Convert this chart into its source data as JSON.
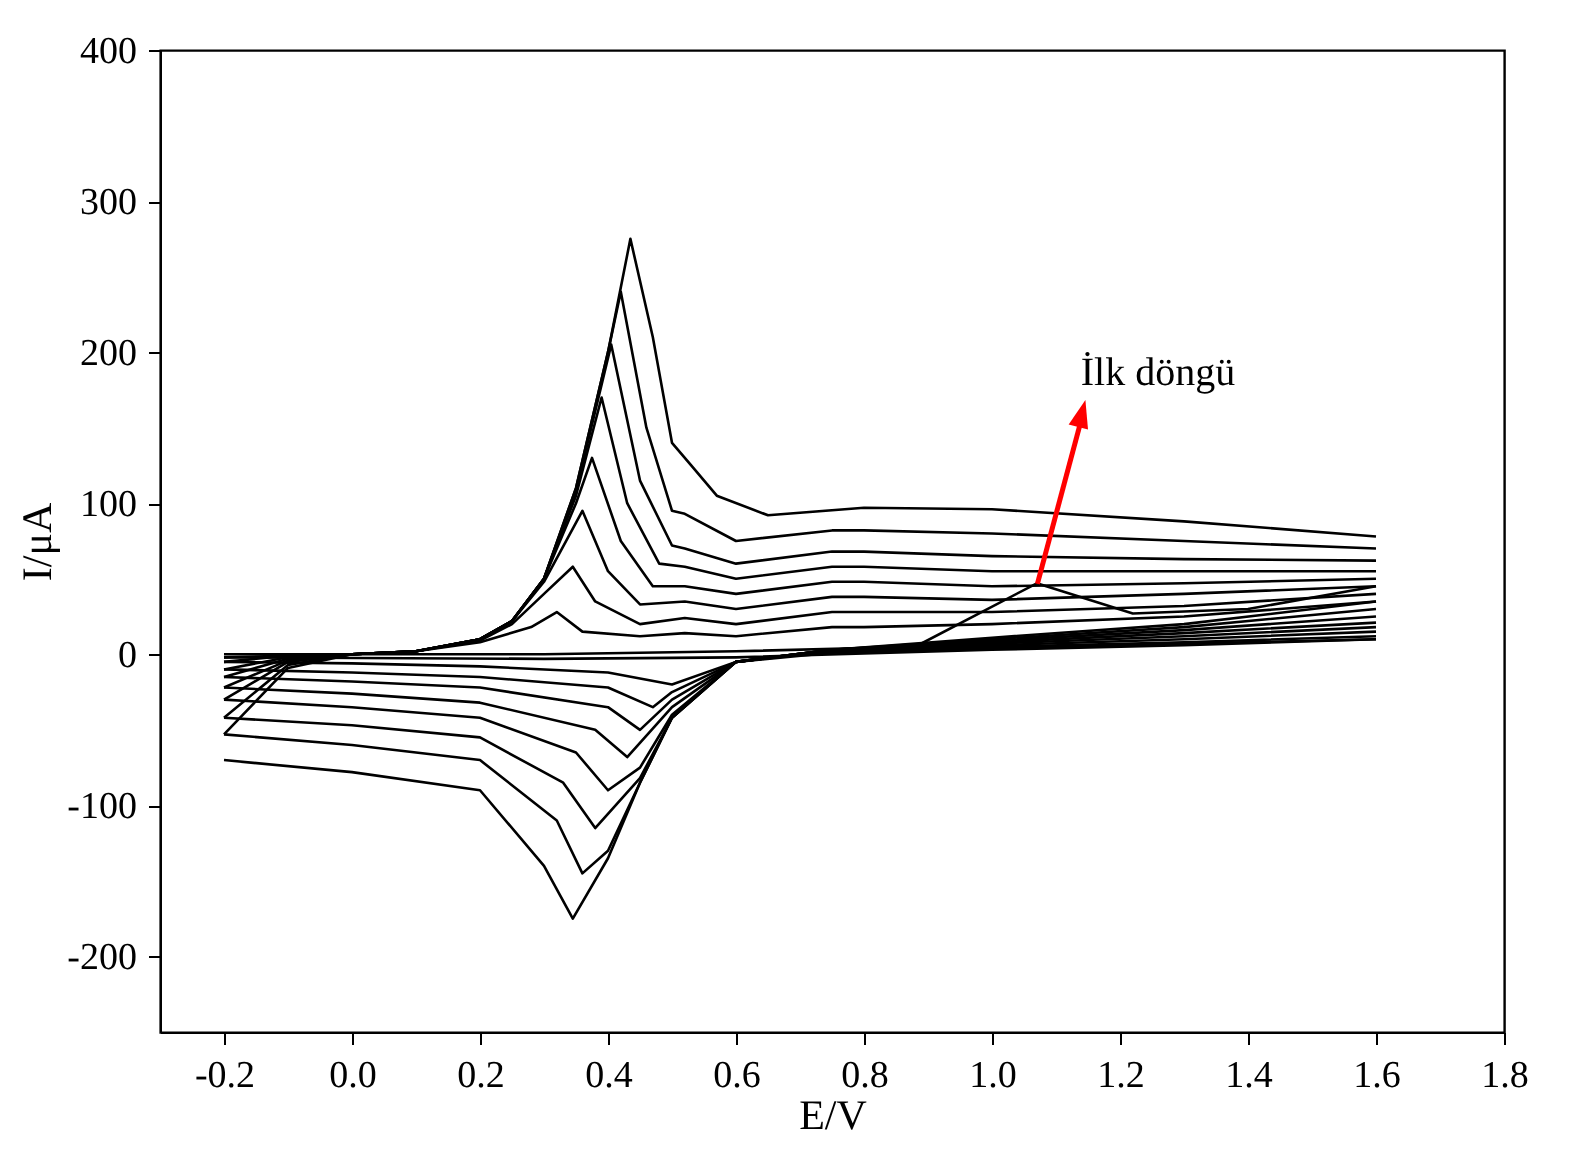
{
  "chart_data": {
    "type": "line",
    "xlabel": "E/V",
    "ylabel": "I/μA",
    "xlim": [
      -0.3,
      1.8
    ],
    "ylim": [
      -250,
      400
    ],
    "xticks": [
      -0.2,
      {
        "value": 0,
        "label": "0.0"
      },
      0.2,
      0.4,
      0.6,
      0.8,
      {
        "value": 1,
        "label": "1.0"
      },
      1.2,
      1.4,
      1.6,
      1.8
    ],
    "yticks": [
      -200,
      -100,
      0,
      100,
      200,
      300,
      400
    ],
    "grid": false,
    "legend": false,
    "marker": "none",
    "line_style": "solid",
    "annotations": [
      {
        "text": "İlk döngü",
        "x": 1.07,
        "y": 47
      }
    ],
    "series": [
      {
        "color": "#000000",
        "x": [
          -0.2,
          0.3,
          0.6,
          0.88,
          1.07,
          1.22,
          1.4,
          1.6
        ],
        "values": [
          0,
          0,
          2,
          5,
          47,
          27,
          30,
          45
        ]
      },
      {
        "color": "#000000",
        "x": [
          1.6,
          1.3,
          1.0,
          0.6,
          0.3,
          -0.2
        ],
        "values": [
          10,
          6,
          3,
          -2,
          -3,
          -2
        ]
      },
      {
        "color": "#000000",
        "x": [
          -0.2,
          -0.1,
          0,
          0.1,
          0.2,
          0.28,
          0.32,
          0.36,
          0.45,
          0.52,
          0.6,
          0.75,
          0.8,
          1.0,
          1.3,
          1.6
        ],
        "values": [
          -5,
          -1,
          0,
          2,
          8,
          18,
          28,
          15,
          12,
          14,
          12,
          18,
          18,
          20,
          25,
          35
        ]
      },
      {
        "color": "#000000",
        "x": [
          1.6,
          1.3,
          1.0,
          0.75,
          0.6,
          0.5,
          0.4,
          0.2,
          0,
          -0.2
        ],
        "values": [
          10,
          7,
          4,
          1,
          -5,
          -20,
          -12,
          -8,
          -6,
          -5
        ]
      },
      {
        "color": "#000000",
        "x": [
          -0.2,
          -0.1,
          0,
          0.1,
          0.2,
          0.25,
          0.3,
          0.345,
          0.38,
          0.45,
          0.52,
          0.6,
          0.75,
          0.8,
          1.0,
          1.3,
          1.6
        ],
        "values": [
          -10,
          -2,
          0,
          2,
          9,
          20,
          40,
          58,
          35,
          20,
          24,
          20,
          28,
          28,
          28,
          32,
          40
        ]
      },
      {
        "color": "#000000",
        "x": [
          1.6,
          1.3,
          1.0,
          0.75,
          0.6,
          0.5,
          0.47,
          0.4,
          0.2,
          0,
          -0.2
        ],
        "values": [
          12,
          8,
          5,
          2,
          -5,
          -25,
          -35,
          -22,
          -15,
          -12,
          -10
        ]
      },
      {
        "color": "#000000",
        "x": [
          -0.2,
          -0.1,
          0,
          0.1,
          0.2,
          0.25,
          0.3,
          0.36,
          0.4,
          0.45,
          0.52,
          0.6,
          0.75,
          0.8,
          1.0,
          1.3,
          1.6
        ],
        "values": [
          -15,
          -3,
          0,
          2,
          10,
          22,
          48,
          95,
          55,
          33,
          35,
          30,
          38,
          38,
          36,
          40,
          45
        ]
      },
      {
        "color": "#000000",
        "x": [
          1.6,
          1.3,
          1.0,
          0.75,
          0.6,
          0.5,
          0.45,
          0.4,
          0.2,
          0,
          -0.2
        ],
        "values": [
          15,
          10,
          6,
          3,
          -5,
          -30,
          -50,
          -35,
          -22,
          -18,
          -15
        ]
      },
      {
        "color": "#000000",
        "x": [
          -0.2,
          -0.1,
          0,
          0.1,
          0.2,
          0.25,
          0.3,
          0.35,
          0.375,
          0.42,
          0.47,
          0.52,
          0.6,
          0.75,
          0.8,
          1.0,
          1.3,
          1.6
        ],
        "values": [
          -22,
          -4,
          0,
          2,
          10,
          22,
          50,
          100,
          130,
          75,
          45,
          45,
          40,
          48,
          48,
          45,
          47,
          50
        ]
      },
      {
        "color": "#000000",
        "x": [
          1.6,
          1.3,
          1.0,
          0.75,
          0.6,
          0.5,
          0.43,
          0.38,
          0.2,
          0,
          -0.2
        ],
        "values": [
          18,
          12,
          7,
          3,
          -5,
          -35,
          -68,
          -50,
          -32,
          -26,
          -22
        ]
      },
      {
        "color": "#000000",
        "x": [
          -0.2,
          -0.1,
          0,
          0.1,
          0.2,
          0.25,
          0.3,
          0.35,
          0.39,
          0.43,
          0.48,
          0.52,
          0.6,
          0.75,
          0.8,
          1.0,
          1.3,
          1.6
        ],
        "values": [
          -30,
          -5,
          0,
          2,
          10,
          22,
          50,
          105,
          170,
          100,
          60,
          58,
          50,
          58,
          58,
          55,
          55,
          55
        ]
      },
      {
        "color": "#000000",
        "x": [
          1.6,
          1.3,
          1.0,
          0.75,
          0.6,
          0.5,
          0.45,
          0.4,
          0.35,
          0.2,
          0,
          -0.2
        ],
        "values": [
          21,
          14,
          8,
          3,
          -5,
          -40,
          -75,
          -90,
          -65,
          -42,
          -35,
          -30
        ]
      },
      {
        "color": "#000000",
        "x": [
          -0.2,
          -0.1,
          0,
          0.1,
          0.2,
          0.25,
          0.3,
          0.35,
          0.405,
          0.45,
          0.5,
          0.52,
          0.6,
          0.75,
          0.8,
          1.0,
          1.3,
          1.6
        ],
        "values": [
          -42,
          -7,
          0,
          2,
          10,
          22,
          50,
          108,
          205,
          115,
          72,
          70,
          60,
          68,
          68,
          65,
          63,
          62
        ]
      },
      {
        "color": "#000000",
        "x": [
          1.6,
          1.3,
          1.0,
          0.75,
          0.6,
          0.5,
          0.45,
          0.38,
          0.33,
          0.2,
          0,
          -0.2
        ],
        "values": [
          25,
          16,
          9,
          3,
          -5,
          -42,
          -82,
          -115,
          -85,
          -55,
          -47,
          -42
        ]
      },
      {
        "color": "#000000",
        "x": [
          -0.2,
          -0.1,
          0,
          0.1,
          0.2,
          0.25,
          0.3,
          0.35,
          0.4,
          0.42,
          0.46,
          0.5,
          0.52,
          0.6,
          0.75,
          0.8,
          1.0,
          1.3,
          1.6
        ],
        "values": [
          -53,
          -9,
          0,
          2,
          10,
          22,
          50,
          110,
          200,
          240,
          150,
          95,
          93,
          75,
          82,
          82,
          80,
          75,
          70
        ]
      },
      {
        "color": "#000000",
        "x": [
          1.6,
          1.3,
          1.0,
          0.75,
          0.6,
          0.5,
          0.45,
          0.4,
          0.36,
          0.32,
          0.2,
          0,
          -0.2
        ],
        "values": [
          30,
          18,
          10,
          3,
          -5,
          -42,
          -85,
          -130,
          -145,
          -110,
          -70,
          -60,
          -53
        ]
      },
      {
        "color": "#000000",
        "x": [
          -0.2,
          0,
          0.1,
          0.2,
          0.25,
          0.3,
          0.35,
          0.4,
          0.435,
          0.47,
          0.5,
          0.53,
          0.57,
          0.65,
          0.8,
          1.0,
          1.3,
          1.6
        ],
        "values": [
          -2,
          0,
          2,
          10,
          22,
          50,
          110,
          200,
          275,
          210,
          140,
          125,
          105,
          92,
          97,
          96,
          88,
          78
        ]
      },
      {
        "color": "#000000",
        "x": [
          1.6,
          1.3,
          1.0,
          0.75,
          0.6,
          0.5,
          0.45,
          0.4,
          0.345,
          0.3,
          0.2,
          0,
          -0.2
        ],
        "values": [
          35,
          20,
          11,
          3,
          -5,
          -42,
          -85,
          -135,
          -175,
          -140,
          -90,
          -78,
          -70
        ]
      }
    ]
  }
}
